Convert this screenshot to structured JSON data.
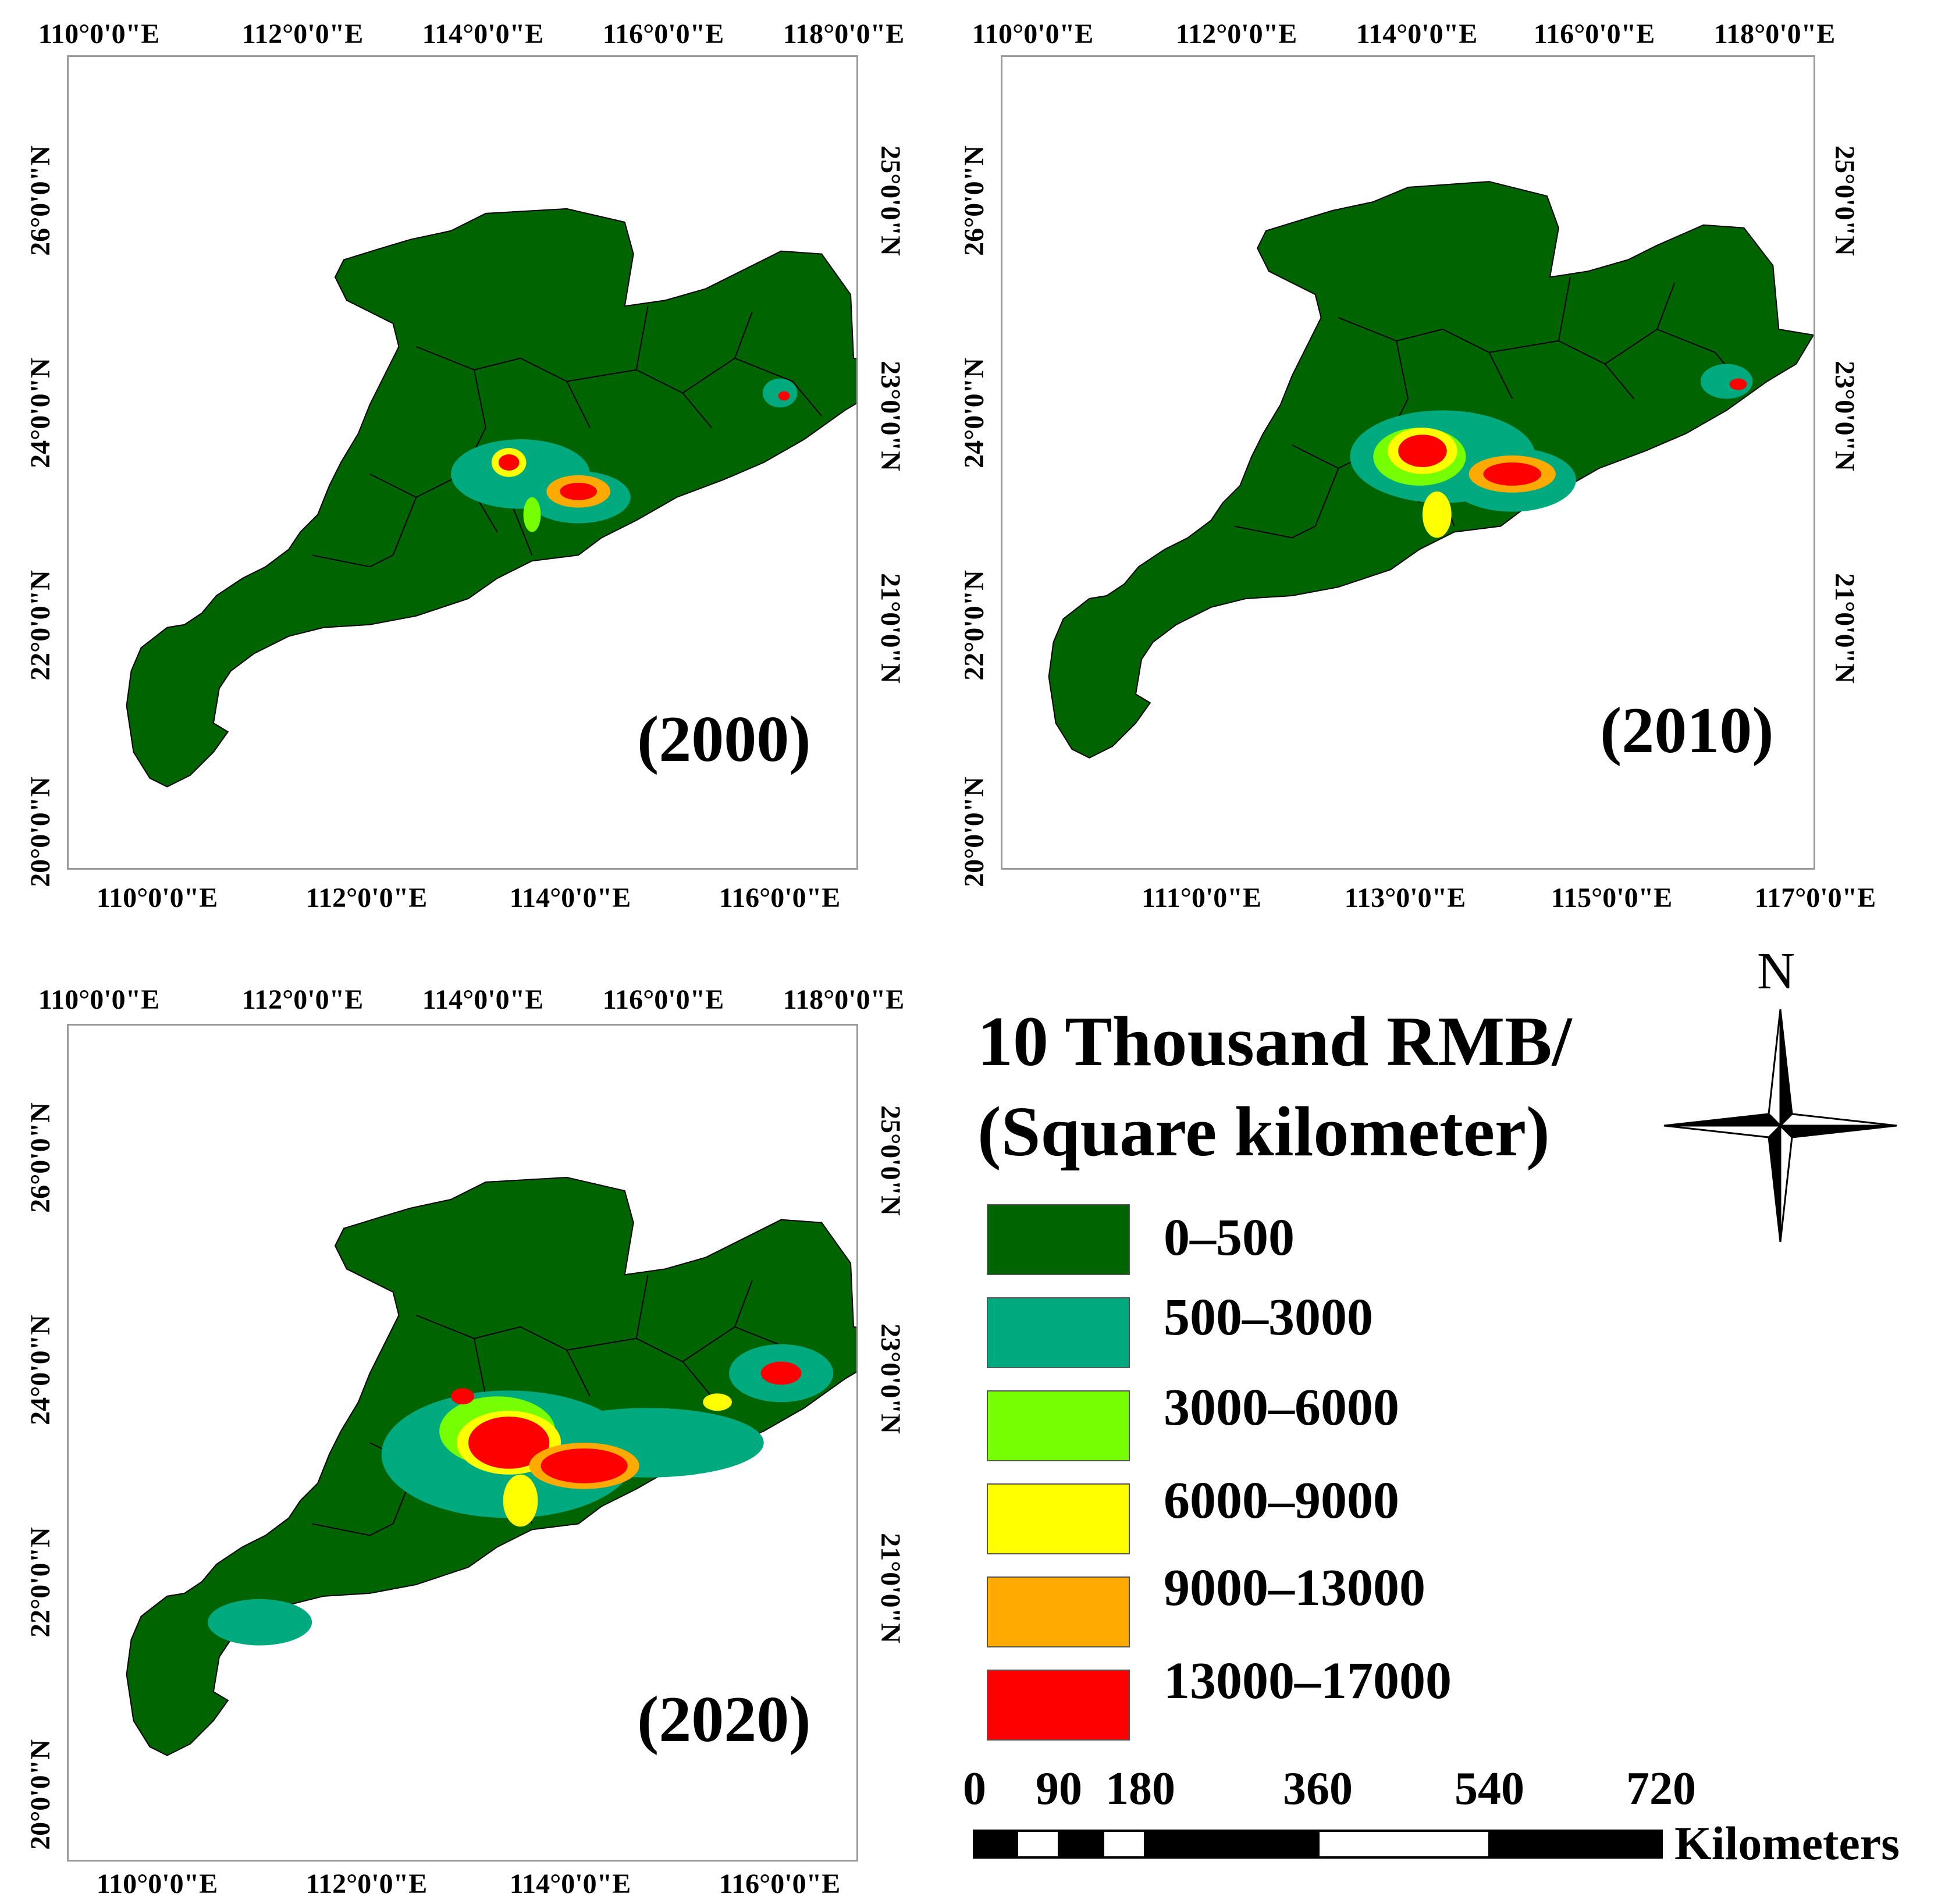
{
  "colors": {
    "c0": "#006400",
    "c1": "#00aa7f",
    "c2": "#76ff03",
    "c3": "#ffff00",
    "c4": "#ffaa00",
    "c5": "#ff0000"
  },
  "panels": [
    {
      "year_label": "(2000)",
      "top_ticks": [
        "110°0'0\"E",
        "112°0'0\"E",
        "114°0'0\"E",
        "116°0'0\"E",
        "118°0'0\"E"
      ],
      "bottom_ticks": [
        "110°0'0\"E",
        "112°0'0\"E",
        "114°0'0\"E",
        "116°0'0\"E"
      ],
      "left_ticks": [
        "26°0'0\"N",
        "24°0'0\"N",
        "22°0'0\"N",
        "20°0'0\"N"
      ],
      "right_ticks": [
        "25°0'0\"N",
        "23°0'0\"N",
        "21°0'0\"N"
      ]
    },
    {
      "year_label": "(2010)",
      "top_ticks": [
        "110°0'0\"E",
        "112°0'0\"E",
        "114°0'0\"E",
        "116°0'0\"E",
        "118°0'0\"E"
      ],
      "bottom_ticks": [
        "111°0'0\"E",
        "113°0'0\"E",
        "115°0'0\"E",
        "117°0'0\"E"
      ],
      "left_ticks": [
        "26°0'0\"N",
        "24°0'0\"N",
        "22°0'0\"N",
        "20°0'0\"N"
      ],
      "right_ticks": [
        "25°0'0\"N",
        "23°0'0\"N",
        "21°0'0\"N"
      ]
    },
    {
      "year_label": "(2020)",
      "top_ticks": [
        "110°0'0\"E",
        "112°0'0\"E",
        "114°0'0\"E",
        "116°0'0\"E",
        "118°0'0\"E"
      ],
      "bottom_ticks": [
        "110°0'0\"E",
        "112°0'0\"E",
        "114°0'0\"E",
        "116°0'0\"E"
      ],
      "left_ticks": [
        "26°0'0\"N",
        "24°0'0\"N",
        "22°0'0\"N",
        "20°0'0\"N"
      ],
      "right_ticks": [
        "25°0'0\"N",
        "23°0'0\"N",
        "21°0'0\"N"
      ]
    }
  ],
  "legend": {
    "title_line1": "10 Thousand RMB/",
    "title_line2": "(Square kilometer)",
    "classes": [
      {
        "label": "0–500",
        "color": "#006400"
      },
      {
        "label": "500–3000",
        "color": "#00aa7f"
      },
      {
        "label": "3000–6000",
        "color": "#76ff03"
      },
      {
        "label": "6000–9000",
        "color": "#ffff00"
      },
      {
        "label": "9000–13000",
        "color": "#ffaa00"
      },
      {
        "label": "13000–17000",
        "color": "#ff0000"
      }
    ]
  },
  "north_arrow": {
    "label": "N"
  },
  "scale_bar": {
    "labels": [
      "0",
      "90",
      "180",
      "360",
      "540",
      "720"
    ],
    "unit": "Kilometers"
  }
}
